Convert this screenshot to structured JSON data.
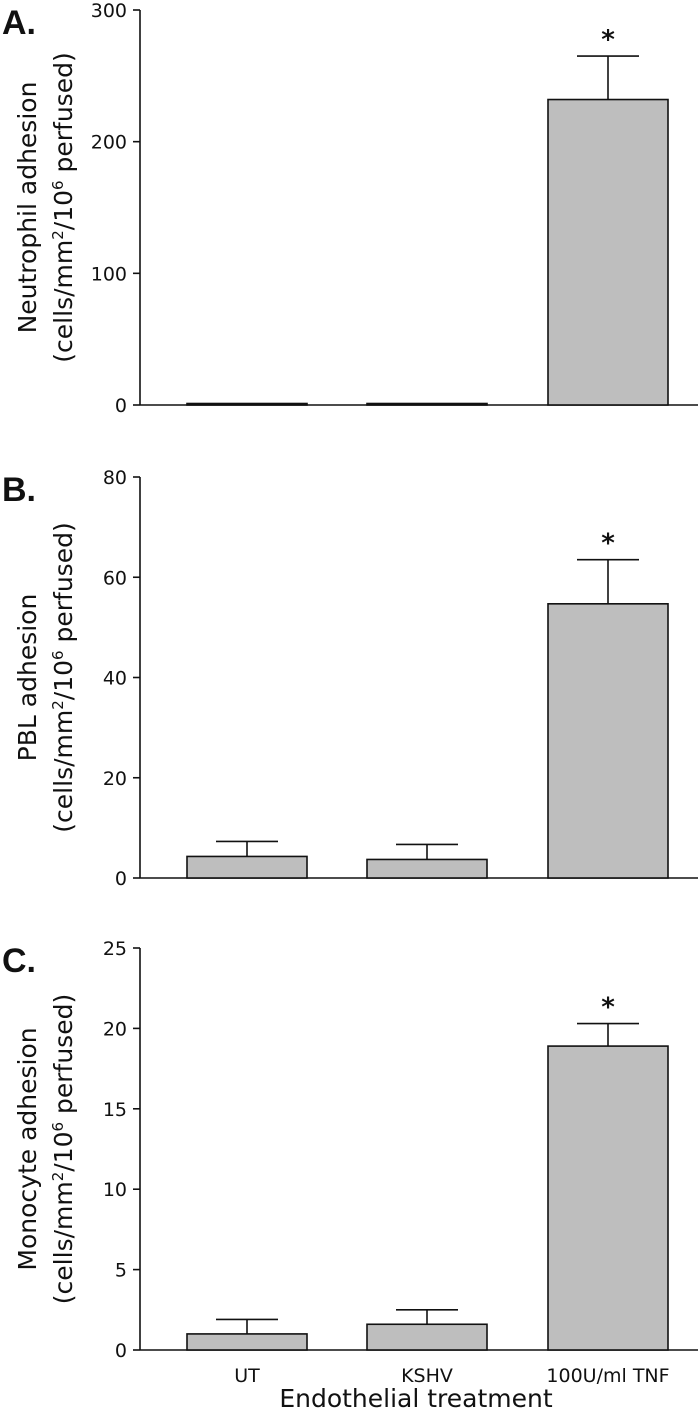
{
  "chart_data": [
    {
      "type": "bar",
      "panel_label": "A.",
      "categories": [
        "UT",
        "KSHV",
        "100U/ml TNF"
      ],
      "values": [
        1,
        1,
        232
      ],
      "errors": [
        0,
        0,
        33
      ],
      "significance": [
        "",
        "",
        "*"
      ],
      "ylabel_line1": "Neutrophil adhesion",
      "ylabel_line2_prefix": "(cells/mm",
      "ylabel_sup1": "2",
      "ylabel_mid": "/10",
      "ylabel_sup2": "6",
      "ylabel_suffix": " perfused)",
      "ylim": [
        0,
        300
      ],
      "yticks": [
        "0",
        "100",
        "200",
        "300"
      ],
      "bar_color": "#bebebe"
    },
    {
      "type": "bar",
      "panel_label": "B.",
      "categories": [
        "UT",
        "KSHV",
        "100U/ml TNF"
      ],
      "values": [
        4.3,
        3.7,
        54.7
      ],
      "errors": [
        3.0,
        3.0,
        8.8
      ],
      "significance": [
        "",
        "",
        "*"
      ],
      "ylabel_line1": "PBL adhesion",
      "ylabel_line2_prefix": "(cells/mm",
      "ylabel_sup1": "2",
      "ylabel_mid": "/10",
      "ylabel_sup2": "6",
      "ylabel_suffix": " perfused)",
      "ylim": [
        0,
        80
      ],
      "yticks": [
        "0",
        "20",
        "40",
        "60",
        "80"
      ],
      "bar_color": "#bebebe"
    },
    {
      "type": "bar",
      "panel_label": "C.",
      "categories": [
        "UT",
        "KSHV",
        "100U/ml TNF"
      ],
      "values": [
        1.0,
        1.6,
        18.9
      ],
      "errors": [
        0.9,
        0.9,
        1.4
      ],
      "significance": [
        "",
        "",
        "*"
      ],
      "ylabel_line1": "Monocyte adhesion",
      "ylabel_line2_prefix": "(cells/mm",
      "ylabel_sup1": "2",
      "ylabel_mid": "/10",
      "ylabel_sup2": "6",
      "ylabel_suffix": " perfused)",
      "ylim": [
        0,
        25
      ],
      "yticks": [
        "0",
        "5",
        "10",
        "15",
        "20",
        "25"
      ],
      "bar_color": "#bebebe",
      "xlabel": "Endothelial treatment"
    }
  ]
}
